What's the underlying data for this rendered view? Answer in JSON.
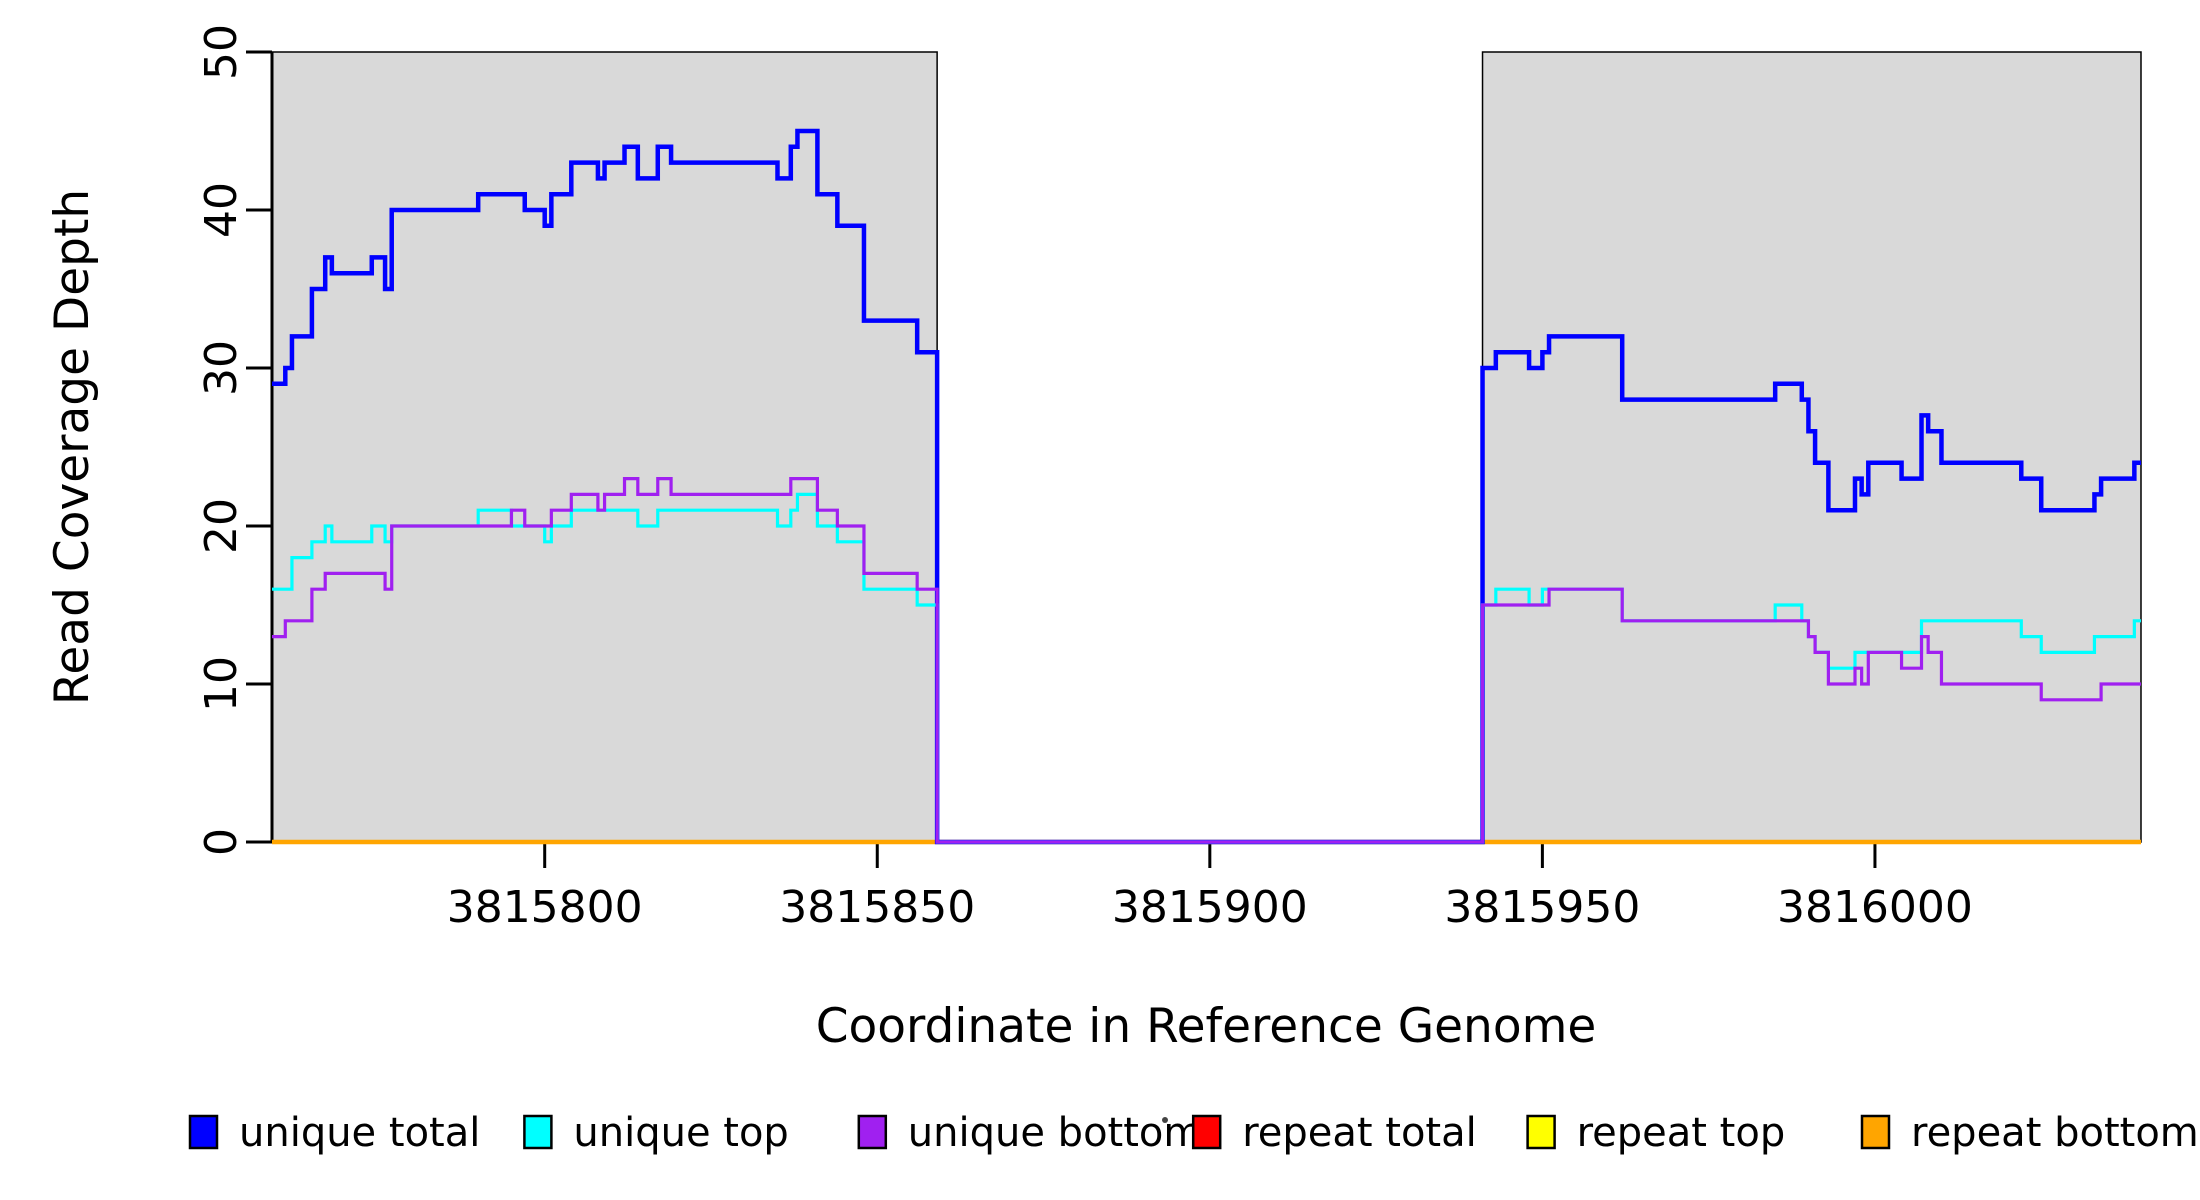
{
  "chart_data": {
    "type": "line",
    "subtype": "step",
    "title": "",
    "xlabel": "Coordinate in Reference Genome",
    "ylabel": "Read Coverage Depth",
    "xlim": [
      3815759,
      3816040
    ],
    "ylim": [
      0,
      50
    ],
    "x_ticks": [
      3815800,
      3815850,
      3815900,
      3815950,
      3816000
    ],
    "y_ticks": [
      0,
      10,
      20,
      30,
      40,
      50
    ],
    "grid": false,
    "legend_position": "bottom",
    "shaded_regions": {
      "fill": "#d9d9d9",
      "border": "#000000",
      "ranges": [
        [
          3815759,
          3815859
        ],
        [
          3815941,
          3816040
        ]
      ]
    },
    "uncovered_gap": [
      3815859,
      3815941
    ],
    "series": [
      {
        "name": "repeat total",
        "color": "#FF0000",
        "line_width": 4,
        "steps": [
          [
            3815759,
            0
          ]
        ]
      },
      {
        "name": "repeat top",
        "color": "#FFFF00",
        "line_width": 4,
        "steps": [
          [
            3815759,
            0
          ]
        ]
      },
      {
        "name": "repeat bottom",
        "color": "#FFA500",
        "line_width": 4.5,
        "steps": [
          [
            3815759,
            0
          ]
        ]
      },
      {
        "name": "unique total",
        "color": "#0000FF",
        "line_width": 4.5,
        "steps": [
          [
            3815759,
            29
          ],
          [
            3815761,
            30
          ],
          [
            3815762,
            32
          ],
          [
            3815765,
            35
          ],
          [
            3815767,
            37
          ],
          [
            3815768,
            36
          ],
          [
            3815774,
            37
          ],
          [
            3815776,
            35
          ],
          [
            3815777,
            40
          ],
          [
            3815790,
            41
          ],
          [
            3815797,
            40
          ],
          [
            3815800,
            39
          ],
          [
            3815801,
            41
          ],
          [
            3815804,
            43
          ],
          [
            3815808,
            42
          ],
          [
            3815809,
            43
          ],
          [
            3815812,
            44
          ],
          [
            3815814,
            42
          ],
          [
            3815817,
            44
          ],
          [
            3815819,
            43
          ],
          [
            3815835,
            42
          ],
          [
            3815837,
            44
          ],
          [
            3815838,
            45
          ],
          [
            3815841,
            41
          ],
          [
            3815844,
            39
          ],
          [
            3815848,
            33
          ],
          [
            3815856,
            31
          ],
          [
            3815859,
            0
          ],
          [
            3815941,
            30
          ],
          [
            3815943,
            31
          ],
          [
            3815948,
            30
          ],
          [
            3815950,
            31
          ],
          [
            3815951,
            32
          ],
          [
            3815962,
            28
          ],
          [
            3815985,
            29
          ],
          [
            3815989,
            28
          ],
          [
            3815990,
            26
          ],
          [
            3815991,
            24
          ],
          [
            3815993,
            21
          ],
          [
            3815997,
            23
          ],
          [
            3815998,
            22
          ],
          [
            3815999,
            24
          ],
          [
            3816004,
            23
          ],
          [
            3816007,
            27
          ],
          [
            3816008,
            26
          ],
          [
            3816010,
            24
          ],
          [
            3816022,
            23
          ],
          [
            3816025,
            21
          ],
          [
            3816033,
            22
          ],
          [
            3816034,
            23
          ],
          [
            3816039,
            24
          ]
        ]
      },
      {
        "name": "unique top",
        "color": "#00FFFF",
        "line_width": 3.2,
        "steps": [
          [
            3815759,
            16
          ],
          [
            3815762,
            18
          ],
          [
            3815765,
            19
          ],
          [
            3815767,
            20
          ],
          [
            3815768,
            19
          ],
          [
            3815774,
            20
          ],
          [
            3815776,
            19
          ],
          [
            3815777,
            20
          ],
          [
            3815790,
            21
          ],
          [
            3815795,
            20
          ],
          [
            3815800,
            19
          ],
          [
            3815801,
            20
          ],
          [
            3815804,
            21
          ],
          [
            3815814,
            20
          ],
          [
            3815817,
            21
          ],
          [
            3815835,
            20
          ],
          [
            3815837,
            21
          ],
          [
            3815838,
            22
          ],
          [
            3815841,
            20
          ],
          [
            3815844,
            19
          ],
          [
            3815848,
            16
          ],
          [
            3815856,
            15
          ],
          [
            3815859,
            0
          ],
          [
            3815941,
            15
          ],
          [
            3815943,
            16
          ],
          [
            3815948,
            15
          ],
          [
            3815950,
            16
          ],
          [
            3815962,
            14
          ],
          [
            3815985,
            15
          ],
          [
            3815989,
            14
          ],
          [
            3815990,
            13
          ],
          [
            3815991,
            12
          ],
          [
            3815993,
            11
          ],
          [
            3815997,
            12
          ],
          [
            3815999,
            12
          ],
          [
            3816007,
            14
          ],
          [
            3816022,
            13
          ],
          [
            3816025,
            12
          ],
          [
            3816033,
            13
          ],
          [
            3816039,
            14
          ]
        ]
      },
      {
        "name": "unique bottom",
        "color": "#A020F0",
        "line_width": 3.2,
        "steps": [
          [
            3815759,
            13
          ],
          [
            3815761,
            14
          ],
          [
            3815765,
            16
          ],
          [
            3815767,
            17
          ],
          [
            3815776,
            16
          ],
          [
            3815777,
            20
          ],
          [
            3815795,
            21
          ],
          [
            3815797,
            20
          ],
          [
            3815801,
            21
          ],
          [
            3815804,
            22
          ],
          [
            3815808,
            21
          ],
          [
            3815809,
            22
          ],
          [
            3815812,
            23
          ],
          [
            3815814,
            22
          ],
          [
            3815817,
            23
          ],
          [
            3815819,
            22
          ],
          [
            3815835,
            22
          ],
          [
            3815837,
            23
          ],
          [
            3815841,
            21
          ],
          [
            3815844,
            20
          ],
          [
            3815848,
            17
          ],
          [
            3815856,
            16
          ],
          [
            3815859,
            0
          ],
          [
            3815941,
            15
          ],
          [
            3815951,
            16
          ],
          [
            3815962,
            14
          ],
          [
            3815990,
            13
          ],
          [
            3815991,
            12
          ],
          [
            3815993,
            10
          ],
          [
            3815997,
            11
          ],
          [
            3815998,
            10
          ],
          [
            3815999,
            12
          ],
          [
            3816004,
            11
          ],
          [
            3816007,
            13
          ],
          [
            3816008,
            12
          ],
          [
            3816010,
            10
          ],
          [
            3816025,
            9
          ],
          [
            3816034,
            10
          ]
        ]
      }
    ],
    "legend": {
      "entries": [
        {
          "label": "unique total",
          "color": "#0000FF"
        },
        {
          "label": "unique top",
          "color": "#00FFFF"
        },
        {
          "label": "unique bottom",
          "color": "#A020F0"
        },
        {
          "label": "repeat total",
          "color": "#FF0000"
        },
        {
          "label": "repeat top",
          "color": "#FFFF00"
        },
        {
          "label": "repeat bottom",
          "color": "#FFA500"
        }
      ]
    },
    "artifact_dot": {
      "x": 1165,
      "y": 1120
    }
  }
}
